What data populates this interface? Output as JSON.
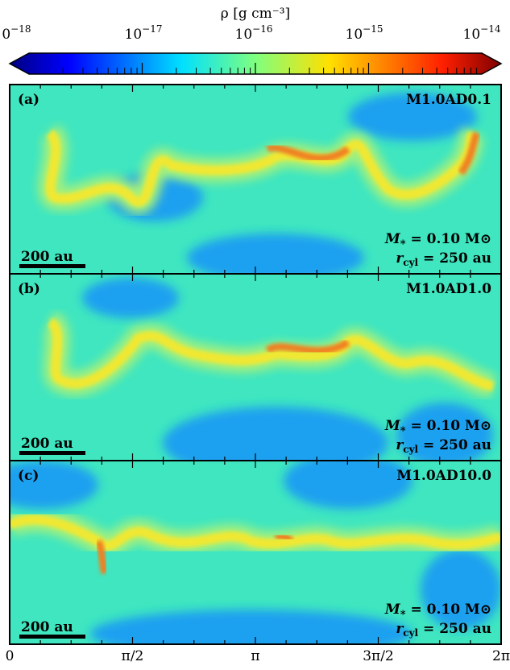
{
  "figure": {
    "colorbar": {
      "label": "ρ [g cm⁻³]",
      "ticks": [
        {
          "base": "10",
          "exp": "−18"
        },
        {
          "base": "10",
          "exp": "−17"
        },
        {
          "base": "10",
          "exp": "−16"
        },
        {
          "base": "10",
          "exp": "−15"
        },
        {
          "base": "10",
          "exp": "−14"
        }
      ]
    },
    "panels": [
      {
        "label": "(a)",
        "model": "M1.0AD0.1",
        "mass": {
          "symbol": "M",
          "subscript": "*",
          "text": " = 0.10 M⊙"
        },
        "radius": {
          "symbol": "r",
          "subscript": "cyl",
          "text": " = 250 au"
        },
        "scale": "200 au"
      },
      {
        "label": "(b)",
        "model": "M1.0AD1.0",
        "mass": {
          "symbol": "M",
          "subscript": "*",
          "text": " = 0.10 M⊙"
        },
        "radius": {
          "symbol": "r",
          "subscript": "cyl",
          "text": " = 250 au"
        },
        "scale": "200 au"
      },
      {
        "label": "(c)",
        "model": "M1.0AD10.0",
        "mass": {
          "symbol": "M",
          "subscript": "*",
          "text": " = 0.10 M⊙"
        },
        "radius": {
          "symbol": "r",
          "subscript": "cyl",
          "text": " = 250 au"
        },
        "scale": "200 au"
      }
    ],
    "x_tick_labels": [
      "0",
      "π/2",
      "π",
      "3π/2",
      "2π"
    ]
  }
}
